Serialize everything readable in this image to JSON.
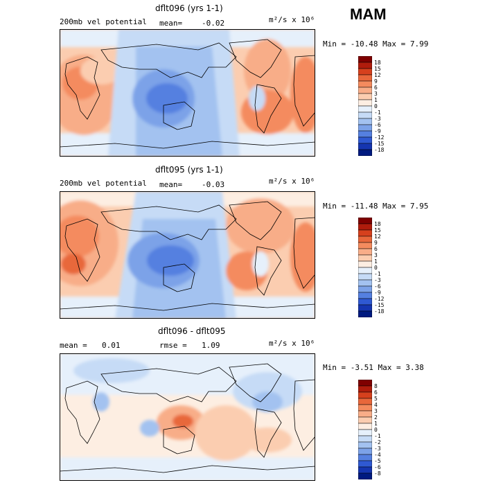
{
  "season": "MAM",
  "panels": [
    {
      "title": "dflt096 (yrs 1-1)",
      "left_label": "200mb vel potential",
      "center_label": "mean=",
      "center_value": "-0.02",
      "units": "m²/s x 10⁶",
      "minmax": "Min = -10.48 Max =   7.99"
    },
    {
      "title": "dflt095 (yrs 1-1)",
      "left_label": "200mb vel potential",
      "center_label": "mean=",
      "center_value": "-0.03",
      "units": "m²/s x 10⁶",
      "minmax": "Min = -11.48 Max =   7.95"
    },
    {
      "title": "dflt096 - dflt095",
      "left_label": "mean =",
      "left_value": "0.01",
      "center_label": "rmse =",
      "center_value": "1.09",
      "units": "m²/s x 10⁶",
      "minmax": "Min = -3.51 Max =   3.38"
    }
  ],
  "colorbar_main": {
    "labels": [
      "18",
      "15",
      "12",
      "9",
      "6",
      "3",
      "1",
      "0",
      "-1",
      "-3",
      "-6",
      "-9",
      "-12",
      "-15",
      "-18"
    ],
    "colors": [
      "#7f0000",
      "#b01c0c",
      "#d6401d",
      "#e8673b",
      "#f48b5e",
      "#f8ad88",
      "#fbcdb0",
      "#fdeee2",
      "#e6f0fb",
      "#c6dbf6",
      "#a3c2f0",
      "#7ca2e8",
      "#5580e0",
      "#2f59d2",
      "#1535b0",
      "#001a80"
    ]
  },
  "colorbar_diff": {
    "labels": [
      "8",
      "6",
      "5",
      "4",
      "3",
      "2",
      "1",
      "0",
      "-1",
      "-2",
      "-3",
      "-4",
      "-5",
      "-6",
      "-8"
    ],
    "colors": [
      "#7f0000",
      "#b01c0c",
      "#d6401d",
      "#e8673b",
      "#f48b5e",
      "#f8ad88",
      "#fbcdb0",
      "#fdeee2",
      "#e6f0fb",
      "#c6dbf6",
      "#a3c2f0",
      "#7ca2e8",
      "#5580e0",
      "#2f59d2",
      "#1535b0",
      "#001a80"
    ]
  }
}
